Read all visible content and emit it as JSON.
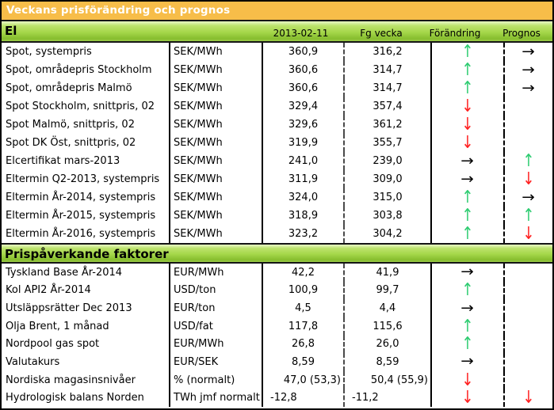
{
  "title": "Veckans prisförändring och prognos",
  "columns": {
    "date": "2013-02-11",
    "prev": "Fg vecka",
    "change": "Förändring",
    "forecast": "Prognos"
  },
  "arrows": {
    "up": "↑",
    "down": "↓",
    "flat": "→",
    "none": ""
  },
  "colors": {
    "header_orange": "#F7BD49",
    "band_green_light": "#e9f8c6",
    "band_green_dark": "#86bd2e",
    "arrow_up_green": "#2ECC71",
    "arrow_down_red": "#FF2020",
    "arrow_flat_black": "#000000"
  },
  "sections": [
    {
      "name": "El",
      "rows": [
        {
          "label": "Spot, systempris",
          "unit": "SEK/MWh",
          "current": "360,9",
          "previous": "316,2",
          "change": "up",
          "forecast": "flat"
        },
        {
          "label": "Spot, områdepris Stockholm",
          "unit": "SEK/MWh",
          "current": "360,6",
          "previous": "314,7",
          "change": "up",
          "forecast": "flat"
        },
        {
          "label": "Spot, områdepris Malmö",
          "unit": "SEK/MWh",
          "current": "360,6",
          "previous": "314,7",
          "change": "up",
          "forecast": "flat"
        },
        {
          "label": "Spot Stockholm, snittpris,  02",
          "unit": "SEK/MWh",
          "current": "329,4",
          "previous": "357,4",
          "change": "down",
          "forecast": "none"
        },
        {
          "label": "Spot Malmö, snittpris,  02",
          "unit": "SEK/MWh",
          "current": "329,6",
          "previous": "361,2",
          "change": "down",
          "forecast": "none"
        },
        {
          "label": "Spot DK Öst, snittpris,  02",
          "unit": "SEK/MWh",
          "current": "319,9",
          "previous": "355,7",
          "change": "down",
          "forecast": "none"
        },
        {
          "label": "Elcertifikat mars-2013",
          "unit": "SEK/MWh",
          "current": "241,0",
          "previous": "239,0",
          "change": "flat",
          "forecast": "up"
        },
        {
          "label": "Eltermin Q2-2013, systempris",
          "unit": "SEK/MWh",
          "current": "311,9",
          "previous": "309,0",
          "change": "flat",
          "forecast": "down"
        },
        {
          "label": "Eltermin År-2014, systempris",
          "unit": "SEK/MWh",
          "current": "324,0",
          "previous": "315,0",
          "change": "up",
          "forecast": "flat"
        },
        {
          "label": "Eltermin År-2015, systempris",
          "unit": "SEK/MWh",
          "current": "318,9",
          "previous": "303,8",
          "change": "up",
          "forecast": "up"
        },
        {
          "label": "Eltermin År-2016, systempris",
          "unit": "SEK/MWh",
          "current": "323,2",
          "previous": "304,2",
          "change": "up",
          "forecast": "down"
        }
      ]
    },
    {
      "name": "Prispåverkande faktorer",
      "rows": [
        {
          "label": "Tyskland Base År-2014",
          "unit": "EUR/MWh",
          "current": "42,2",
          "previous": "41,9",
          "change": "flat",
          "forecast": "none"
        },
        {
          "label": "Kol API2 År-2014",
          "unit": "USD/ton",
          "current": "100,9",
          "previous": "99,7",
          "change": "up",
          "forecast": "none"
        },
        {
          "label": "Utsläppsrätter Dec 2013",
          "unit": "EUR/ton",
          "current": "4,5",
          "previous": "4,4",
          "change": "flat",
          "forecast": "none"
        },
        {
          "label": "Olja Brent, 1 månad",
          "unit": "USD/fat",
          "current": "117,8",
          "previous": "115,6",
          "change": "up",
          "forecast": "none"
        },
        {
          "label": "Nordpool gas spot",
          "unit": "EUR/MWh",
          "current": "26,8",
          "previous": "26,0",
          "change": "up",
          "forecast": "none"
        },
        {
          "label": "Valutakurs",
          "unit": "EUR/SEK",
          "current": "8,59",
          "previous": "8,59",
          "change": "flat",
          "forecast": "none"
        },
        {
          "label": "Nordiska magasinsnivåer",
          "unit": "%   (normalt)",
          "current": "47,0 (53,3)",
          "previous": "50,4 (55,9)",
          "change": "down",
          "forecast": "none",
          "align": "r"
        },
        {
          "label": "Hydrologisk balans Norden",
          "unit": "TWh jmf normalt",
          "current": "-12,8",
          "previous": "-11,2",
          "change": "down",
          "forecast": "down",
          "align": "l"
        }
      ]
    }
  ]
}
